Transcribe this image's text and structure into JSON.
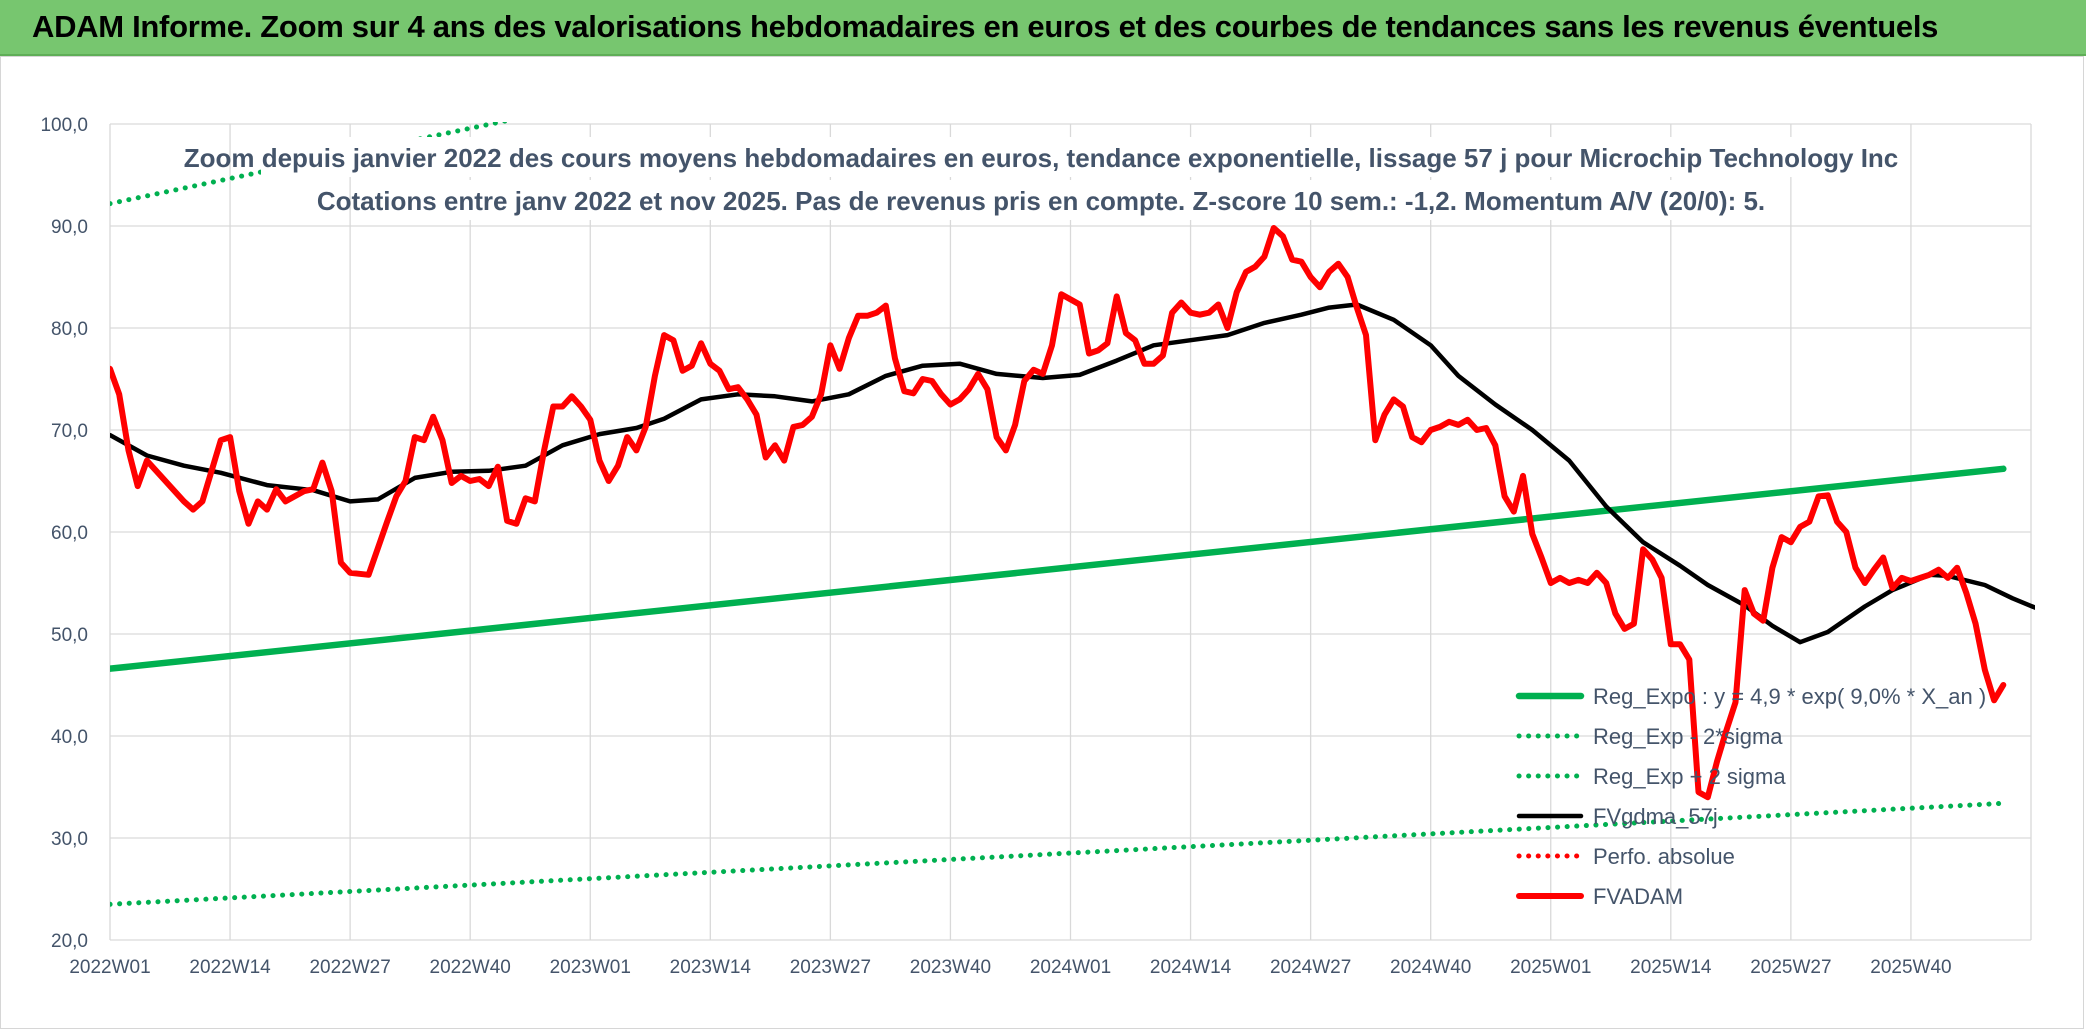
{
  "banner": {
    "title": "ADAM Informe. Zoom sur 4 ans des valorisations hebdomadaires en euros et des courbes de tendances sans les revenus éventuels"
  },
  "colors": {
    "banner_bg": "#77c66f",
    "green": "#00b050",
    "black": "#000000",
    "red": "#ff0000",
    "text": "#44546a",
    "grid": "#d9d9d9"
  },
  "chart_data": {
    "type": "line",
    "title": [
      "Zoom depuis janvier 2022 des cours moyens hebdomadaires en euros, tendance exponentielle, lissage 57 j pour Microchip Technology Inc",
      "Cotations entre janv 2022 et nov 2025. Pas de revenus pris en compte. Z-score 10 sem.: -1,2. Momentum A/V (20/0): 5."
    ],
    "ylim": [
      20,
      100
    ],
    "y_ticks": [
      "20,0",
      "30,0",
      "40,0",
      "50,0",
      "60,0",
      "70,0",
      "80,0",
      "90,0",
      "100,0"
    ],
    "x_ticks": [
      "2022W01",
      "2022W14",
      "2022W27",
      "2022W40",
      "2023W01",
      "2023W14",
      "2023W27",
      "2023W40",
      "2024W01",
      "2024W14",
      "2024W27",
      "2024W40",
      "2025W01",
      "2025W14",
      "2025W27",
      "2025W40"
    ],
    "grid": true,
    "legend_position": "bottom-right",
    "series": [
      {
        "name": "Reg_Expo : y = 4,9 * exp( 9,0% *  X_an )",
        "style": "solid",
        "color": "#00b050",
        "points": [
          [
            0,
            46.6
          ],
          [
            205,
            66.2
          ]
        ]
      },
      {
        "name": "Reg_Exp - 2*sigma",
        "style": "dotted",
        "color": "#00b050",
        "points": [
          [
            0,
            23.5
          ],
          [
            205,
            33.4
          ]
        ]
      },
      {
        "name": "Reg_Exp + 2 sigma",
        "style": "dotted",
        "color": "#00b050",
        "points": [
          [
            0,
            92.2
          ],
          [
            205,
            131.0
          ]
        ]
      },
      {
        "name": "FVgdma_57j",
        "style": "solid",
        "color": "#000000",
        "points": [
          [
            0,
            69.5
          ],
          [
            4,
            67.5
          ],
          [
            8,
            66.5
          ],
          [
            12,
            65.8
          ],
          [
            17,
            64.6
          ],
          [
            22,
            64.1
          ],
          [
            26,
            63.0
          ],
          [
            29,
            63.2
          ],
          [
            33,
            65.3
          ],
          [
            37,
            65.9
          ],
          [
            41,
            66.0
          ],
          [
            45,
            66.5
          ],
          [
            49,
            68.5
          ],
          [
            53,
            69.6
          ],
          [
            57,
            70.2
          ],
          [
            60,
            71.1
          ],
          [
            64,
            73.0
          ],
          [
            68,
            73.5
          ],
          [
            72,
            73.3
          ],
          [
            76,
            72.8
          ],
          [
            80,
            73.5
          ],
          [
            84,
            75.3
          ],
          [
            88,
            76.3
          ],
          [
            92,
            76.5
          ],
          [
            96,
            75.5
          ],
          [
            101,
            75.1
          ],
          [
            105,
            75.4
          ],
          [
            109,
            76.8
          ],
          [
            113,
            78.3
          ],
          [
            117,
            78.8
          ],
          [
            121,
            79.3
          ],
          [
            125,
            80.5
          ],
          [
            129,
            81.3
          ],
          [
            132,
            82.0
          ],
          [
            135,
            82.3
          ],
          [
            139,
            80.8
          ],
          [
            143,
            78.3
          ],
          [
            146,
            75.3
          ],
          [
            150,
            72.5
          ],
          [
            154,
            70.0
          ],
          [
            158,
            67.0
          ],
          [
            162,
            62.5
          ],
          [
            166,
            59.0
          ],
          [
            170,
            56.7
          ],
          [
            173,
            54.8
          ],
          [
            177,
            52.8
          ],
          [
            180,
            50.8
          ],
          [
            183,
            49.2
          ],
          [
            186,
            50.2
          ],
          [
            190,
            52.7
          ],
          [
            193,
            54.3
          ],
          [
            197,
            55.8
          ],
          [
            199,
            55.7
          ],
          [
            203,
            54.8
          ],
          [
            206,
            53.5
          ],
          [
            210,
            52.0
          ],
          [
            213,
            50.2
          ],
          [
            216,
            48.5
          ]
        ]
      },
      {
        "name": "Perfo. absolue",
        "style": "dotted",
        "color": "#ff0000",
        "points": []
      },
      {
        "name": "FVADAM",
        "style": "solid",
        "color": "#ff0000",
        "points": [
          [
            0,
            76.0
          ],
          [
            1,
            73.5
          ],
          [
            2,
            68.0
          ],
          [
            3,
            64.5
          ],
          [
            4,
            67.0
          ],
          [
            6,
            65.0
          ],
          [
            8,
            63.0
          ],
          [
            9,
            62.2
          ],
          [
            10,
            63.0
          ],
          [
            12,
            69.0
          ],
          [
            13,
            69.3
          ],
          [
            14,
            64.0
          ],
          [
            15,
            60.8
          ],
          [
            16,
            63.0
          ],
          [
            17,
            62.2
          ],
          [
            18,
            64.2
          ],
          [
            19,
            63.0
          ],
          [
            21,
            64.0
          ],
          [
            22,
            64.2
          ],
          [
            23,
            66.8
          ],
          [
            24,
            64.0
          ],
          [
            25,
            57.0
          ],
          [
            26,
            56.0
          ],
          [
            28,
            55.8
          ],
          [
            30,
            61.0
          ],
          [
            31,
            63.5
          ],
          [
            32,
            65.0
          ],
          [
            33,
            69.3
          ],
          [
            34,
            69.0
          ],
          [
            35,
            71.3
          ],
          [
            36,
            69.0
          ],
          [
            37,
            64.8
          ],
          [
            38,
            65.5
          ],
          [
            39,
            65.0
          ],
          [
            40,
            65.2
          ],
          [
            41,
            64.5
          ],
          [
            42,
            66.4
          ],
          [
            43,
            61.1
          ],
          [
            44,
            60.8
          ],
          [
            45,
            63.3
          ],
          [
            46,
            63.0
          ],
          [
            47,
            68.0
          ],
          [
            48,
            72.3
          ],
          [
            49,
            72.3
          ],
          [
            50,
            73.3
          ],
          [
            51,
            72.3
          ],
          [
            52,
            71.0
          ],
          [
            53,
            67.0
          ],
          [
            54,
            65.0
          ],
          [
            55,
            66.5
          ],
          [
            56,
            69.3
          ],
          [
            57,
            68.0
          ],
          [
            58,
            70.3
          ],
          [
            59,
            75.3
          ],
          [
            60,
            79.3
          ],
          [
            61,
            78.8
          ],
          [
            62,
            75.8
          ],
          [
            63,
            76.3
          ],
          [
            64,
            78.5
          ],
          [
            65,
            76.5
          ],
          [
            66,
            75.8
          ],
          [
            67,
            74.0
          ],
          [
            68,
            74.2
          ],
          [
            69,
            73.0
          ],
          [
            70,
            71.5
          ],
          [
            71,
            67.3
          ],
          [
            72,
            68.5
          ],
          [
            73,
            67.0
          ],
          [
            74,
            70.3
          ],
          [
            75,
            70.5
          ],
          [
            76,
            71.3
          ],
          [
            77,
            73.5
          ],
          [
            78,
            78.3
          ],
          [
            79,
            76.0
          ],
          [
            80,
            79.0
          ],
          [
            81,
            81.2
          ],
          [
            82,
            81.2
          ],
          [
            83,
            81.5
          ],
          [
            84,
            82.2
          ],
          [
            85,
            77.0
          ],
          [
            86,
            73.8
          ],
          [
            87,
            73.6
          ],
          [
            88,
            75.0
          ],
          [
            89,
            74.8
          ],
          [
            90,
            73.5
          ],
          [
            91,
            72.5
          ],
          [
            92,
            73.0
          ],
          [
            93,
            74.0
          ],
          [
            94,
            75.5
          ],
          [
            95,
            74.0
          ],
          [
            96,
            69.3
          ],
          [
            97,
            68.0
          ],
          [
            98,
            70.5
          ],
          [
            99,
            74.8
          ],
          [
            100,
            75.9
          ],
          [
            101,
            75.5
          ],
          [
            102,
            78.3
          ],
          [
            103,
            83.3
          ],
          [
            104,
            82.8
          ],
          [
            105,
            82.3
          ],
          [
            106,
            77.5
          ],
          [
            107,
            77.8
          ],
          [
            108,
            78.5
          ],
          [
            109,
            83.1
          ],
          [
            110,
            79.5
          ],
          [
            111,
            78.8
          ],
          [
            112,
            76.5
          ],
          [
            113,
            76.5
          ],
          [
            114,
            77.3
          ],
          [
            115,
            81.5
          ],
          [
            116,
            82.5
          ],
          [
            117,
            81.5
          ],
          [
            118,
            81.3
          ],
          [
            119,
            81.5
          ],
          [
            120,
            82.3
          ],
          [
            121,
            80.0
          ],
          [
            122,
            83.5
          ],
          [
            123,
            85.5
          ],
          [
            124,
            86.0
          ],
          [
            125,
            87.0
          ],
          [
            126,
            89.8
          ],
          [
            127,
            89.0
          ],
          [
            128,
            86.7
          ],
          [
            129,
            86.5
          ],
          [
            130,
            85.0
          ],
          [
            131,
            84.0
          ],
          [
            132,
            85.5
          ],
          [
            133,
            86.3
          ],
          [
            134,
            85.0
          ],
          [
            135,
            82.0
          ],
          [
            136,
            79.3
          ],
          [
            137,
            69.0
          ],
          [
            138,
            71.5
          ],
          [
            139,
            73.0
          ],
          [
            140,
            72.3
          ],
          [
            141,
            69.3
          ],
          [
            142,
            68.8
          ],
          [
            143,
            70.0
          ],
          [
            144,
            70.3
          ],
          [
            145,
            70.8
          ],
          [
            146,
            70.5
          ],
          [
            147,
            71.0
          ],
          [
            148,
            70.0
          ],
          [
            149,
            70.2
          ],
          [
            150,
            68.5
          ],
          [
            151,
            63.5
          ],
          [
            152,
            62.0
          ],
          [
            153,
            65.5
          ],
          [
            154,
            59.8
          ],
          [
            155,
            57.5
          ],
          [
            156,
            55.0
          ],
          [
            157,
            55.5
          ],
          [
            158,
            55.0
          ],
          [
            159,
            55.3
          ],
          [
            160,
            55.0
          ],
          [
            161,
            56.0
          ],
          [
            162,
            55.0
          ],
          [
            163,
            52.0
          ],
          [
            164,
            50.5
          ],
          [
            165,
            51.0
          ],
          [
            166,
            58.3
          ],
          [
            167,
            57.3
          ],
          [
            168,
            55.5
          ],
          [
            169,
            49.0
          ],
          [
            170,
            49.0
          ],
          [
            171,
            47.5
          ],
          [
            172,
            34.5
          ],
          [
            173,
            34.0
          ],
          [
            174,
            37.5
          ],
          [
            175,
            40.5
          ],
          [
            176,
            43.3
          ],
          [
            177,
            54.3
          ],
          [
            178,
            52.0
          ],
          [
            179,
            51.3
          ],
          [
            180,
            56.5
          ],
          [
            181,
            59.5
          ],
          [
            182,
            59.0
          ],
          [
            183,
            60.5
          ],
          [
            184,
            61.0
          ],
          [
            185,
            63.5
          ],
          [
            186,
            63.6
          ],
          [
            187,
            61.0
          ],
          [
            188,
            60.0
          ],
          [
            189,
            56.5
          ],
          [
            190,
            55.0
          ],
          [
            191,
            56.3
          ],
          [
            192,
            57.5
          ],
          [
            193,
            54.5
          ],
          [
            194,
            55.5
          ],
          [
            195,
            55.2
          ],
          [
            196,
            55.5
          ],
          [
            197,
            55.8
          ],
          [
            198,
            56.3
          ],
          [
            199,
            55.5
          ],
          [
            200,
            56.5
          ],
          [
            201,
            54.0
          ],
          [
            202,
            51.0
          ],
          [
            203,
            46.5
          ],
          [
            204,
            43.5
          ],
          [
            205,
            45.0
          ]
        ]
      }
    ]
  }
}
